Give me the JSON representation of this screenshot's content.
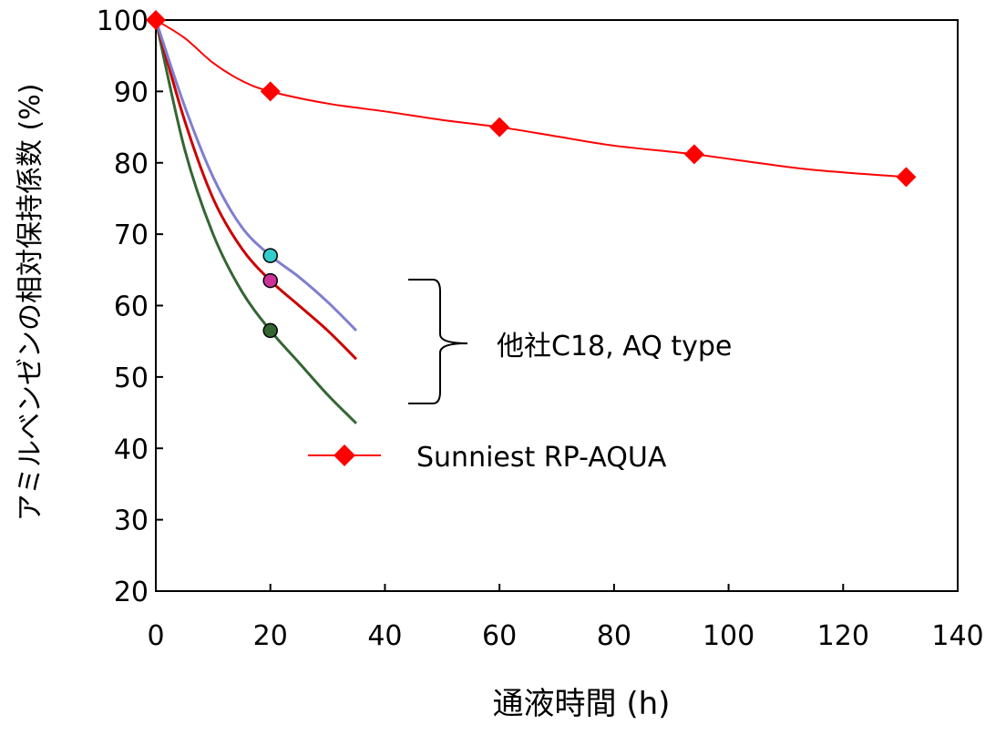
{
  "chart_data": {
    "type": "line",
    "xlabel": "通液時間 (h)",
    "ylabel": "アミルベンゼンの相対保持係数 (%)",
    "xlim": [
      0,
      140
    ],
    "ylim": [
      20,
      100
    ],
    "x_ticks": [
      "0",
      "20",
      "40",
      "60",
      "80",
      "100",
      "120",
      "140"
    ],
    "y_ticks": [
      "20",
      "30",
      "40",
      "50",
      "60",
      "70",
      "80",
      "90",
      "100"
    ],
    "grid": false,
    "legend_position": "middle",
    "series": [
      {
        "name": "Sunniest RP-AQUA",
        "color": "#ff0000",
        "marker": "diamond",
        "points": [
          [
            0,
            100
          ],
          [
            20,
            90
          ],
          [
            60,
            85
          ],
          [
            94,
            81.2
          ],
          [
            131,
            78
          ]
        ],
        "curve": [
          [
            0,
            100
          ],
          [
            5,
            97.5
          ],
          [
            10,
            94
          ],
          [
            15,
            91.5
          ],
          [
            20,
            90
          ],
          [
            30,
            88.3
          ],
          [
            40,
            87.2
          ],
          [
            50,
            86
          ],
          [
            60,
            85
          ],
          [
            70,
            83.7
          ],
          [
            80,
            82.4
          ],
          [
            94,
            81.2
          ],
          [
            105,
            80
          ],
          [
            115,
            79
          ],
          [
            131,
            78
          ]
        ]
      },
      {
        "color": "#7f7fcf",
        "marker": "circle",
        "marker_color": "#33cccc",
        "points": [
          [
            0,
            100
          ],
          [
            20,
            67
          ]
        ],
        "curve": [
          [
            0,
            100
          ],
          [
            5,
            88
          ],
          [
            10,
            78
          ],
          [
            15,
            71
          ],
          [
            20,
            67
          ],
          [
            25,
            64
          ],
          [
            30,
            60.5
          ],
          [
            35,
            56.5
          ]
        ]
      },
      {
        "color": "#cc0000",
        "marker": "circle",
        "marker_color": "#cc3399",
        "points": [
          [
            0,
            100
          ],
          [
            20,
            63.5
          ]
        ],
        "curve": [
          [
            0,
            100
          ],
          [
            5,
            86
          ],
          [
            10,
            75
          ],
          [
            15,
            68
          ],
          [
            20,
            63.5
          ],
          [
            25,
            60
          ],
          [
            30,
            56.5
          ],
          [
            35,
            52.5
          ]
        ]
      },
      {
        "color": "#336633",
        "marker": "circle",
        "marker_color": "#336633",
        "points": [
          [
            0,
            100
          ],
          [
            20,
            56.5
          ]
        ],
        "curve": [
          [
            0,
            100
          ],
          [
            5,
            82
          ],
          [
            10,
            70
          ],
          [
            15,
            62
          ],
          [
            20,
            56.5
          ],
          [
            25,
            52
          ],
          [
            30,
            47.5
          ],
          [
            35,
            43.5
          ]
        ]
      }
    ],
    "annotation": "他社C18, AQ type",
    "legend_label": "Sunniest RP-AQUA"
  }
}
